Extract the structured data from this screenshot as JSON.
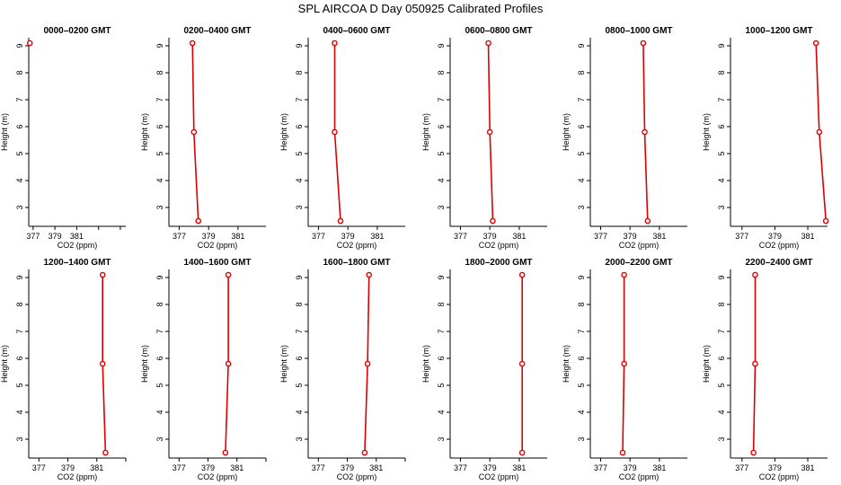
{
  "title": "SPL AIRCOA D  Day 050925  Calibrated Profiles",
  "colors": {
    "series": "#dd0000",
    "axis": "#000000"
  },
  "chart_data": [
    {
      "type": "line",
      "title": "0000–0200 GMT",
      "xlabel": "CO2 (ppm)",
      "ylabel": "Height (m)",
      "xlim": [
        376.6,
        385.5
      ],
      "ylim": [
        2.3,
        9.3
      ],
      "xticks": [
        "377",
        "379",
        "381"
      ],
      "yticks": [
        "3",
        "4",
        "5",
        "6",
        "7",
        "8",
        "9"
      ],
      "x": [
        376.7
      ],
      "y": [
        9.1
      ]
    },
    {
      "type": "line",
      "title": "0200–0400 GMT",
      "xlabel": "CO2 (ppm)",
      "ylabel": "Height (m)",
      "xlim": [
        376.3,
        382.9
      ],
      "ylim": [
        2.3,
        9.3
      ],
      "xticks": [
        "377",
        "379",
        "381"
      ],
      "yticks": [
        "3",
        "4",
        "5",
        "6",
        "7",
        "8",
        "9"
      ],
      "x": [
        377.9,
        378.0,
        378.3
      ],
      "y": [
        9.1,
        5.8,
        2.5
      ]
    },
    {
      "type": "line",
      "title": "0400–0600 GMT",
      "xlabel": "CO2 (ppm)",
      "ylabel": "Height (m)",
      "xlim": [
        376.3,
        382.9
      ],
      "ylim": [
        2.3,
        9.3
      ],
      "xticks": [
        "377",
        "379",
        "381"
      ],
      "yticks": [
        "3",
        "4",
        "5",
        "6",
        "7",
        "8",
        "9"
      ],
      "x": [
        378.1,
        378.1,
        378.5
      ],
      "y": [
        9.1,
        5.8,
        2.5
      ]
    },
    {
      "type": "line",
      "title": "0600–0800 GMT",
      "xlabel": "CO2 (ppm)",
      "ylabel": "Height (m)",
      "xlim": [
        376.3,
        382.9
      ],
      "ylim": [
        2.3,
        9.3
      ],
      "xticks": [
        "377",
        "379",
        "381"
      ],
      "yticks": [
        "3",
        "4",
        "5",
        "6",
        "7",
        "8",
        "9"
      ],
      "x": [
        378.9,
        379.0,
        379.2
      ],
      "y": [
        9.1,
        5.8,
        2.5
      ]
    },
    {
      "type": "line",
      "title": "0800–1000 GMT",
      "xlabel": "CO2 (ppm)",
      "ylabel": "Height (m)",
      "xlim": [
        376.3,
        382.9
      ],
      "ylim": [
        2.3,
        9.3
      ],
      "xticks": [
        "377",
        "379",
        "381"
      ],
      "yticks": [
        "3",
        "4",
        "5",
        "6",
        "7",
        "8",
        "9"
      ],
      "x": [
        379.9,
        380.0,
        380.2
      ],
      "y": [
        9.1,
        5.8,
        2.5
      ]
    },
    {
      "type": "line",
      "title": "1000–1200 GMT",
      "xlabel": "CO2 (ppm)",
      "ylabel": "Height (m)",
      "xlim": [
        376.3,
        382.2
      ],
      "ylim": [
        2.3,
        9.3
      ],
      "xticks": [
        "377",
        "379",
        "381"
      ],
      "yticks": [
        "3",
        "4",
        "5",
        "6",
        "7",
        "8",
        "9"
      ],
      "x": [
        381.5,
        381.7,
        382.1
      ],
      "y": [
        9.1,
        5.8,
        2.5
      ]
    },
    {
      "type": "line",
      "title": "1200–1400 GMT",
      "xlabel": "CO2 (ppm)",
      "ylabel": "Height (m)",
      "xlim": [
        376.3,
        383.0
      ],
      "ylim": [
        2.3,
        9.3
      ],
      "xticks": [
        "377",
        "379",
        "381"
      ],
      "yticks": [
        "3",
        "4",
        "5",
        "6",
        "7",
        "8",
        "9"
      ],
      "x": [
        381.4,
        381.4,
        381.6
      ],
      "y": [
        9.1,
        5.8,
        2.5
      ]
    },
    {
      "type": "line",
      "title": "1400–1600 GMT",
      "xlabel": "CO2 (ppm)",
      "ylabel": "Height (m)",
      "xlim": [
        376.3,
        383.0
      ],
      "ylim": [
        2.3,
        9.3
      ],
      "xticks": [
        "377",
        "379",
        "381"
      ],
      "yticks": [
        "3",
        "4",
        "5",
        "6",
        "7",
        "8",
        "9"
      ],
      "x": [
        380.4,
        380.4,
        380.2
      ],
      "y": [
        9.1,
        5.8,
        2.5
      ]
    },
    {
      "type": "line",
      "title": "1600–1800 GMT",
      "xlabel": "CO2 (ppm)",
      "ylabel": "Height (m)",
      "xlim": [
        376.3,
        383.0
      ],
      "ylim": [
        2.3,
        9.3
      ],
      "xticks": [
        "377",
        "379",
        "381"
      ],
      "yticks": [
        "3",
        "4",
        "5",
        "6",
        "7",
        "8",
        "9"
      ],
      "x": [
        380.5,
        380.4,
        380.2
      ],
      "y": [
        9.1,
        5.8,
        2.5
      ]
    },
    {
      "type": "line",
      "title": "1800–2000 GMT",
      "xlabel": "CO2 (ppm)",
      "ylabel": "Height (m)",
      "xlim": [
        376.3,
        382.9
      ],
      "ylim": [
        2.3,
        9.3
      ],
      "xticks": [
        "377",
        "379",
        "381"
      ],
      "yticks": [
        "3",
        "4",
        "5",
        "6",
        "7",
        "8",
        "9"
      ],
      "x": [
        381.2,
        381.2,
        381.2
      ],
      "y": [
        9.1,
        5.8,
        2.5
      ]
    },
    {
      "type": "line",
      "title": "2000–2200 GMT",
      "xlabel": "CO2 (ppm)",
      "ylabel": "Height (m)",
      "xlim": [
        376.3,
        382.9
      ],
      "ylim": [
        2.3,
        9.3
      ],
      "xticks": [
        "377",
        "379",
        "381"
      ],
      "yticks": [
        "3",
        "4",
        "5",
        "6",
        "7",
        "8",
        "9"
      ],
      "x": [
        378.6,
        378.6,
        378.5
      ],
      "y": [
        9.1,
        5.8,
        2.5
      ]
    },
    {
      "type": "line",
      "title": "2200–2400 GMT",
      "xlabel": "CO2 (ppm)",
      "ylabel": "Height (m)",
      "xlim": [
        376.3,
        382.2
      ],
      "ylim": [
        2.3,
        9.3
      ],
      "xticks": [
        "377",
        "379",
        "381"
      ],
      "yticks": [
        "3",
        "4",
        "5",
        "6",
        "7",
        "8",
        "9"
      ],
      "x": [
        377.8,
        377.8,
        377.7
      ],
      "y": [
        9.1,
        5.8,
        2.5
      ]
    }
  ]
}
